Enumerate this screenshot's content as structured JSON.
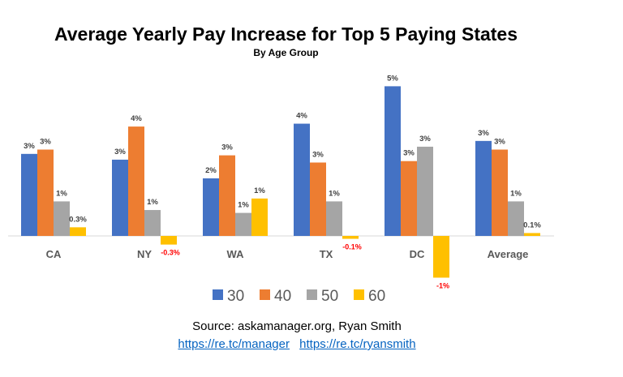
{
  "chart_data": {
    "type": "bar",
    "title": "Average Yearly Pay Increase for Top 5 Paying States",
    "subtitle": "By Age Group",
    "categories": [
      "CA",
      "NY",
      "WA",
      "TX",
      "DC",
      "Average"
    ],
    "series": [
      {
        "name": "30",
        "color": "#4472c4",
        "values": [
          2.85,
          2.65,
          2.0,
          3.9,
          5.2,
          3.3
        ],
        "labels": [
          "3%",
          "3%",
          "2%",
          "4%",
          "5%",
          "3%"
        ]
      },
      {
        "name": "40",
        "color": "#ed7d31",
        "values": [
          3.0,
          3.8,
          2.8,
          2.55,
          2.6,
          3.0
        ],
        "labels": [
          "3%",
          "4%",
          "3%",
          "3%",
          "3%",
          "3%"
        ]
      },
      {
        "name": "50",
        "color": "#a5a5a5",
        "values": [
          1.2,
          0.9,
          0.8,
          1.2,
          3.1,
          1.2
        ],
        "labels": [
          "1%",
          "1%",
          "1%",
          "1%",
          "3%",
          "1%"
        ]
      },
      {
        "name": "60",
        "color": "#ffc000",
        "values": [
          0.3,
          -0.3,
          1.3,
          -0.1,
          -1.45,
          0.1
        ],
        "labels": [
          "0.3%",
          "-0.3%",
          "1%",
          "-0.1%",
          "-1%",
          "0.1%"
        ]
      }
    ],
    "unit": "%",
    "grid": false,
    "legend": "bottom",
    "negative_label_color": "#ff0000"
  },
  "source": "Source: askamanager.org, Ryan Smith",
  "links": [
    "https://re.tc/manager",
    "https://re.tc/ryansmith"
  ]
}
